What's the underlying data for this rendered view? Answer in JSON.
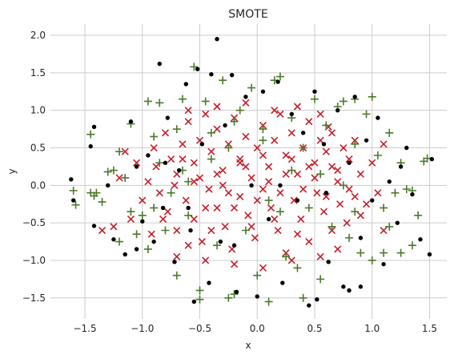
{
  "chart_data": {
    "type": "scatter",
    "title": "SMOTE",
    "xlabel": "x",
    "ylabel": "y",
    "xlim": [
      -1.8,
      1.65
    ],
    "ylim": [
      -1.78,
      2.15
    ],
    "xticks": [
      -1.5,
      -1.0,
      -0.5,
      0.0,
      0.5,
      1.0,
      1.5
    ],
    "yticks": [
      -1.5,
      -1.0,
      -0.5,
      0.0,
      0.5,
      1.0,
      1.5,
      2.0
    ],
    "xtick_labels": [
      "−1.5",
      "−1.0",
      "−0.5",
      "0.0",
      "0.5",
      "1.0",
      "1.5"
    ],
    "ytick_labels": [
      "−1.5",
      "−1.0",
      "−0.5",
      "0.0",
      "0.5",
      "1.0",
      "1.5",
      "2.0"
    ],
    "grid": true,
    "series": [
      {
        "marker": "x",
        "color": "#c41e2a",
        "points": [
          [
            -0.9,
            0.5
          ],
          [
            -0.8,
            0.7
          ],
          [
            -0.75,
            0.35
          ],
          [
            -0.7,
            0.15
          ],
          [
            -0.65,
            0.55
          ],
          [
            -0.6,
            0.85
          ],
          [
            -0.55,
            0.3
          ],
          [
            -0.5,
            0.6
          ],
          [
            -0.45,
            0.95
          ],
          [
            -0.4,
            0.45
          ],
          [
            -0.35,
            0.75
          ],
          [
            -0.3,
            0.2
          ],
          [
            -0.25,
            0.55
          ],
          [
            -0.2,
            0.9
          ],
          [
            -0.15,
            0.35
          ],
          [
            -0.1,
            0.65
          ],
          [
            -0.05,
            0.1
          ],
          [
            0.0,
            0.5
          ],
          [
            0.05,
            0.8
          ],
          [
            0.1,
            0.25
          ],
          [
            0.15,
            0.6
          ],
          [
            0.2,
            0.95
          ],
          [
            0.25,
            0.4
          ],
          [
            0.3,
            0.7
          ],
          [
            0.35,
            0.15
          ],
          [
            0.4,
            0.5
          ],
          [
            0.45,
            0.85
          ],
          [
            0.5,
            0.3
          ],
          [
            0.55,
            0.6
          ],
          [
            0.6,
            0.45
          ],
          [
            0.65,
            0.7
          ],
          [
            0.7,
            0.2
          ],
          [
            0.75,
            0.5
          ],
          [
            0.8,
            0.35
          ],
          [
            0.85,
            0.6
          ],
          [
            -0.85,
            -0.1
          ],
          [
            -0.78,
            -0.35
          ],
          [
            -0.7,
            -0.6
          ],
          [
            -0.62,
            -0.2
          ],
          [
            -0.55,
            -0.45
          ],
          [
            -0.48,
            -0.75
          ],
          [
            -0.42,
            -0.05
          ],
          [
            -0.35,
            -0.3
          ],
          [
            -0.28,
            -0.55
          ],
          [
            -0.22,
            -0.85
          ],
          [
            -0.15,
            -0.15
          ],
          [
            -0.08,
            -0.4
          ],
          [
            -0.02,
            -0.7
          ],
          [
            0.05,
            -0.05
          ],
          [
            0.12,
            -0.3
          ],
          [
            0.18,
            -0.6
          ],
          [
            0.25,
            -0.9
          ],
          [
            0.32,
            -0.2
          ],
          [
            0.38,
            -0.45
          ],
          [
            0.45,
            -0.75
          ],
          [
            0.52,
            -0.1
          ],
          [
            0.58,
            -0.35
          ],
          [
            0.65,
            -0.6
          ],
          [
            0.72,
            -0.25
          ],
          [
            0.78,
            -0.5
          ],
          [
            0.85,
            -0.15
          ],
          [
            0.9,
            -0.4
          ],
          [
            -0.95,
            0.05
          ],
          [
            -1.0,
            -0.2
          ],
          [
            -1.05,
            0.3
          ],
          [
            -1.1,
            -0.45
          ],
          [
            -0.92,
            -0.65
          ],
          [
            -0.88,
            0.25
          ],
          [
            -0.82,
            -0.45
          ],
          [
            -0.72,
            0.0
          ],
          [
            -0.6,
            -0.8
          ],
          [
            -0.5,
            0.1
          ],
          [
            -0.4,
            -0.6
          ],
          [
            -0.3,
            0.0
          ],
          [
            -0.2,
            -0.3
          ],
          [
            -0.1,
            0.25
          ],
          [
            0.0,
            -0.2
          ],
          [
            0.1,
            0.05
          ],
          [
            0.2,
            -0.1
          ],
          [
            0.3,
            0.35
          ],
          [
            0.4,
            -0.05
          ],
          [
            0.5,
            0.1
          ],
          [
            0.6,
            -0.15
          ],
          [
            0.7,
            0.05
          ],
          [
            0.8,
            -0.05
          ],
          [
            0.9,
            0.15
          ],
          [
            0.95,
            -0.25
          ],
          [
            1.0,
            0.3
          ],
          [
            1.05,
            -0.1
          ],
          [
            -0.35,
            1.05
          ],
          [
            -0.1,
            1.1
          ],
          [
            0.15,
            1.0
          ],
          [
            0.35,
            1.05
          ],
          [
            0.55,
            0.95
          ],
          [
            -0.6,
            1.0
          ],
          [
            -0.2,
            -1.05
          ],
          [
            0.05,
            -1.1
          ],
          [
            0.3,
            -1.0
          ],
          [
            -0.45,
            -1.0
          ],
          [
            0.55,
            -0.95
          ],
          [
            -1.25,
            -0.55
          ],
          [
            -1.35,
            -0.6
          ],
          [
            -1.2,
            0.1
          ],
          [
            -1.15,
            0.45
          ],
          [
            -0.7,
            -0.95
          ],
          [
            0.7,
            -0.85
          ],
          [
            0.62,
            0.78
          ],
          [
            -0.15,
            0.3
          ],
          [
            0.05,
            0.4
          ],
          [
            0.25,
            0.15
          ],
          [
            -0.35,
            0.15
          ],
          [
            -0.55,
            0.05
          ],
          [
            0.45,
            0.25
          ],
          [
            -0.25,
            -0.1
          ],
          [
            0.15,
            -0.45
          ],
          [
            -0.05,
            -0.55
          ],
          [
            0.35,
            -0.65
          ],
          [
            -0.45,
            -0.3
          ],
          [
            0.65,
            0.25
          ],
          [
            -0.65,
            0.35
          ],
          [
            1.1,
            0.55
          ],
          [
            1.1,
            -0.6
          ]
        ]
      },
      {
        "marker": "+",
        "color": "#4a7a2a",
        "points": [
          [
            -1.6,
            -0.07
          ],
          [
            -1.58,
            -0.26
          ],
          [
            -1.45,
            -0.1
          ],
          [
            -1.42,
            -0.14
          ],
          [
            -1.35,
            -0.22
          ],
          [
            -1.3,
            0.18
          ],
          [
            -1.25,
            0.2
          ],
          [
            -1.2,
            0.45
          ],
          [
            -1.15,
            0.1
          ],
          [
            -1.1,
            -0.35
          ],
          [
            -1.05,
            -0.65
          ],
          [
            -1.0,
            -0.4
          ],
          [
            -0.95,
            -0.85
          ],
          [
            -0.9,
            0.65
          ],
          [
            -0.85,
            0.3
          ],
          [
            -0.8,
            -0.6
          ],
          [
            -0.75,
            -0.1
          ],
          [
            -0.7,
            0.75
          ],
          [
            -0.65,
            0.2
          ],
          [
            -0.6,
            -0.4
          ],
          [
            -0.55,
            1.58
          ],
          [
            -0.5,
            -1.4
          ],
          [
            -0.45,
            1.12
          ],
          [
            -0.4,
            0.7
          ],
          [
            -0.35,
            -0.8
          ],
          [
            -0.3,
            1.4
          ],
          [
            -0.25,
            0.5
          ],
          [
            -0.2,
            -1.45
          ],
          [
            -0.15,
            1.0
          ],
          [
            -0.1,
            -0.6
          ],
          [
            -0.05,
            1.3
          ],
          [
            0.0,
            -1.2
          ],
          [
            0.05,
            0.6
          ],
          [
            0.1,
            -0.2
          ],
          [
            0.15,
            1.4
          ],
          [
            0.2,
            1.45
          ],
          [
            0.25,
            -0.95
          ],
          [
            0.3,
            0.2
          ],
          [
            0.35,
            -1.1
          ],
          [
            0.4,
            0.5
          ],
          [
            0.45,
            -0.3
          ],
          [
            0.5,
            1.15
          ],
          [
            0.55,
            -1.25
          ],
          [
            0.6,
            0.8
          ],
          [
            0.65,
            -0.55
          ],
          [
            0.7,
            1.05
          ],
          [
            0.75,
            0.0
          ],
          [
            0.8,
            -0.7
          ],
          [
            0.85,
            0.55
          ],
          [
            0.9,
            -0.9
          ],
          [
            0.95,
            0.95
          ],
          [
            1.0,
            1.18
          ],
          [
            1.05,
            0.4
          ],
          [
            1.1,
            -0.3
          ],
          [
            1.15,
            0.7
          ],
          [
            1.2,
            -0.1
          ],
          [
            1.25,
            0.3
          ],
          [
            1.3,
            -0.05
          ],
          [
            1.35,
            -0.07
          ],
          [
            1.4,
            -0.4
          ],
          [
            1.45,
            0.32
          ],
          [
            1.48,
            0.36
          ],
          [
            1.35,
            -0.8
          ],
          [
            1.25,
            -0.9
          ],
          [
            -1.45,
            0.68
          ],
          [
            -1.1,
            0.82
          ],
          [
            -0.95,
            1.12
          ],
          [
            -0.85,
            1.1
          ],
          [
            -0.65,
            1.15
          ],
          [
            -1.4,
            -0.1
          ],
          [
            -1.2,
            -0.75
          ],
          [
            0.75,
            1.12
          ],
          [
            0.85,
            1.15
          ],
          [
            1.0,
            -1.0
          ],
          [
            0.4,
            -1.5
          ],
          [
            0.1,
            -1.55
          ],
          [
            -0.25,
            -1.5
          ],
          [
            -0.5,
            -1.52
          ],
          [
            -0.7,
            -1.2
          ],
          [
            1.1,
            -0.9
          ],
          [
            1.15,
            -0.55
          ],
          [
            -0.2,
            0.85
          ],
          [
            0.05,
            0.75
          ],
          [
            0.3,
            0.9
          ],
          [
            -0.4,
            0.35
          ],
          [
            0.2,
            -0.35
          ],
          [
            -0.6,
            0.05
          ],
          [
            0.55,
            0.15
          ],
          [
            -0.9,
            -0.3
          ],
          [
            0.85,
            -0.35
          ]
        ]
      },
      {
        "marker": "o",
        "color": "#000000",
        "points": [
          [
            -1.62,
            0.08
          ],
          [
            -1.6,
            -0.2
          ],
          [
            -1.45,
            0.52
          ],
          [
            -1.42,
            0.78
          ],
          [
            -1.42,
            -0.54
          ],
          [
            -1.3,
            0.0
          ],
          [
            -1.25,
            -0.72
          ],
          [
            -1.15,
            -0.92
          ],
          [
            -1.1,
            0.85
          ],
          [
            -1.05,
            0.25
          ],
          [
            -1.0,
            -0.48
          ],
          [
            -0.95,
            0.4
          ],
          [
            -0.9,
            -0.75
          ],
          [
            -0.85,
            1.62
          ],
          [
            -0.82,
            -0.3
          ],
          [
            -0.78,
            0.9
          ],
          [
            -0.72,
            -1.02
          ],
          [
            -0.68,
            0.2
          ],
          [
            -0.62,
            1.35
          ],
          [
            -0.58,
            -0.6
          ],
          [
            -0.55,
            -1.55
          ],
          [
            -0.52,
            1.55
          ],
          [
            -0.48,
            0.55
          ],
          [
            -0.42,
            -1.3
          ],
          [
            -0.4,
            1.48
          ],
          [
            -0.35,
            1.95
          ],
          [
            -0.32,
            -0.75
          ],
          [
            -0.28,
            0.8
          ],
          [
            -0.22,
            1.47
          ],
          [
            -0.18,
            -1.42
          ],
          [
            -0.1,
            1.18
          ],
          [
            -0.05,
            0.0
          ],
          [
            0.0,
            -1.48
          ],
          [
            0.05,
            1.25
          ],
          [
            0.1,
            -0.45
          ],
          [
            0.18,
            1.38
          ],
          [
            0.22,
            -1.3
          ],
          [
            0.3,
            0.95
          ],
          [
            0.35,
            -0.2
          ],
          [
            0.45,
            -1.6
          ],
          [
            0.5,
            1.25
          ],
          [
            0.52,
            -1.52
          ],
          [
            0.58,
            0.55
          ],
          [
            0.62,
            -1.02
          ],
          [
            0.7,
            1.0
          ],
          [
            0.75,
            -1.35
          ],
          [
            0.8,
            0.3
          ],
          [
            0.85,
            1.18
          ],
          [
            0.9,
            -0.7
          ],
          [
            0.95,
            0.6
          ],
          [
            1.0,
            -0.2
          ],
          [
            1.05,
            0.9
          ],
          [
            1.1,
            -1.05
          ],
          [
            1.15,
            0.05
          ],
          [
            1.22,
            -0.5
          ],
          [
            1.3,
            0.5
          ],
          [
            1.35,
            -0.12
          ],
          [
            1.42,
            -0.72
          ],
          [
            1.5,
            -0.92
          ],
          [
            1.52,
            0.35
          ],
          [
            0.9,
            -1.35
          ],
          [
            0.8,
            -1.4
          ],
          [
            -0.6,
            -0.3
          ],
          [
            0.6,
            -0.1
          ],
          [
            -0.8,
            0.3
          ],
          [
            0.2,
            0.0
          ],
          [
            -0.2,
            -0.8
          ],
          [
            0.4,
            0.7
          ],
          [
            -1.05,
            -0.85
          ],
          [
            1.25,
            0.25
          ]
        ]
      }
    ]
  }
}
